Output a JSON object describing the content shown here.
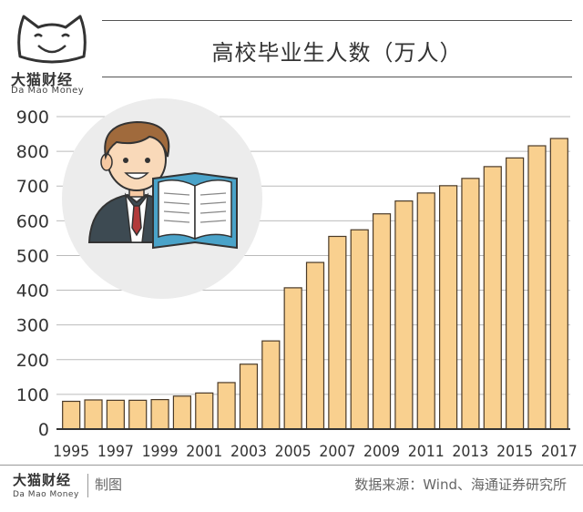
{
  "brand": {
    "name_cn": "大猫财经",
    "name_en": "Da Mao Money"
  },
  "footer": {
    "made_by": "制图",
    "source": "数据来源：Wind、海通证券研究所"
  },
  "colors": {
    "bar_fill": "#F9D08F",
    "bar_stroke": "#4a3a28",
    "axis": "#333333",
    "gridline": "#bbbbbb",
    "circle_bg": "#ececec"
  },
  "icons": [
    "cat-logo-icon",
    "graduate-reading-book-icon"
  ],
  "chart_data": {
    "type": "bar",
    "title": "高校毕业生人数（万人）",
    "categories": [
      "1995",
      "1996",
      "1997",
      "1998",
      "1999",
      "2000",
      "2001",
      "2002",
      "2003",
      "2004",
      "2005",
      "2006",
      "2007",
      "2008",
      "2009",
      "2010",
      "2011",
      "2012",
      "2013",
      "2014",
      "2015",
      "2016",
      "2017"
    ],
    "x_tick_labels": [
      "1995",
      "1997",
      "1999",
      "2001",
      "2003",
      "2005",
      "2007",
      "2009",
      "2011",
      "2013",
      "2015",
      "2017"
    ],
    "values": [
      80,
      84,
      83,
      83,
      85,
      95,
      104,
      134,
      187,
      254,
      407,
      480,
      555,
      574,
      620,
      657,
      680,
      701,
      722,
      756,
      781,
      816,
      837
    ],
    "ylim": [
      0,
      900
    ],
    "yticks": [
      0,
      100,
      200,
      300,
      400,
      500,
      600,
      700,
      800,
      900
    ],
    "xlabel": "",
    "ylabel": "",
    "grid": true
  }
}
